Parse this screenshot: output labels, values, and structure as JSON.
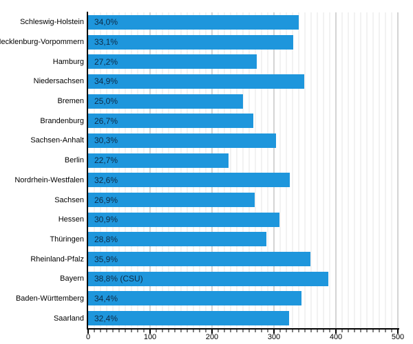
{
  "chart_data": {
    "type": "bar",
    "orientation": "horizontal",
    "title": "",
    "xlabel": "",
    "ylabel": "",
    "categories": [
      "Schleswig-Holstein",
      "Mecklenburg-Vorpommern",
      "Hamburg",
      "Niedersachsen",
      "Bremen",
      "Brandenburg",
      "Sachsen-Anhalt",
      "Berlin",
      "Nordrhein-Westfalen",
      "Sachsen",
      "Hessen",
      "Thüringen",
      "Rheinland-Pfalz",
      "Bayern",
      "Baden-Württemberg",
      "Saarland"
    ],
    "values": [
      34.0,
      33.1,
      27.2,
      34.9,
      25.0,
      26.7,
      30.3,
      22.7,
      32.6,
      26.9,
      30.9,
      28.8,
      35.9,
      38.8,
      34.4,
      32.4
    ],
    "bar_labels": [
      "34,0%",
      "33,1%",
      "27,2%",
      "34,9%",
      "25,0%",
      "26,7%",
      "30,3%",
      "22,7%",
      "32,6%",
      "26,9%",
      "30,9%",
      "28,8%",
      "35,9%",
      "38,8% (CSU)",
      "34,4%",
      "32,4%"
    ],
    "value_to_axis_scale": 10,
    "xlim": [
      0,
      500
    ],
    "xticks": [
      0,
      100,
      200,
      300,
      400,
      500
    ],
    "minor_tick_step": 10,
    "major_tick_step": 100,
    "grid": true,
    "legend": false,
    "colors": {
      "bar": "#1E96DC",
      "bar_label_text": "#0D2A45",
      "axis": "#000000",
      "major_gridline": "#A8A8A8",
      "minor_gridline": "#E4E4E4",
      "background": "#FFFFFF"
    }
  }
}
